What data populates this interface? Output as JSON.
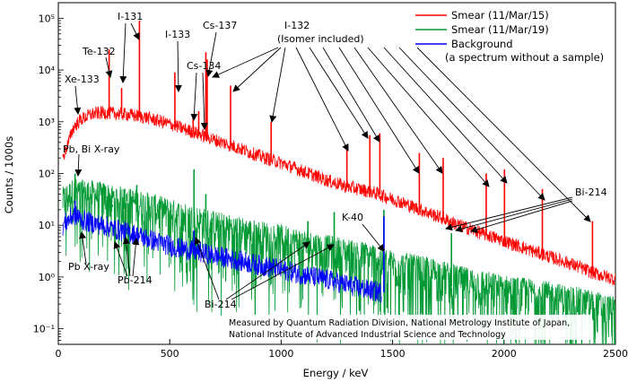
{
  "chart_data": {
    "type": "line",
    "xlabel": "Energy / keV",
    "ylabel": "Counts / 1000s",
    "xlim": [
      0,
      2500
    ],
    "ylim": [
      0.05,
      200000
    ],
    "yscale": "log",
    "x_ticks": [
      0,
      500,
      1000,
      1500,
      2000,
      2500
    ],
    "y_ticks": [
      {
        "value": 0.1,
        "label": "10⁻¹"
      },
      {
        "value": 1,
        "label": "10⁰"
      },
      {
        "value": 10,
        "label": "10¹"
      },
      {
        "value": 100,
        "label": "10²"
      },
      {
        "value": 1000,
        "label": "10³"
      },
      {
        "value": 10000,
        "label": "10⁴"
      },
      {
        "value": 100000,
        "label": "10⁵"
      }
    ],
    "legend_position": "top-right",
    "series": [
      {
        "name": "Smear (11/Mar/15)",
        "color": "#ff0000",
        "x": [
          20,
          70,
          100,
          150,
          200,
          250,
          300,
          350,
          400,
          500,
          600,
          700,
          800,
          900,
          1000,
          1100,
          1200,
          1300,
          1400,
          1500,
          1600,
          1700,
          1800,
          1900,
          2000,
          2100,
          2200,
          2300,
          2400,
          2500
        ],
        "values": [
          200,
          800,
          1100,
          1400,
          1500,
          1450,
          1400,
          1300,
          1200,
          900,
          650,
          450,
          320,
          220,
          160,
          110,
          75,
          55,
          45,
          32,
          22,
          15,
          10,
          7,
          5,
          3.5,
          2.5,
          1.8,
          1.2,
          0.9
        ],
        "peaks": [
          {
            "x": 81,
            "y": 700
          },
          {
            "x": 228,
            "y": 25000
          },
          {
            "x": 284,
            "y": 4500
          },
          {
            "x": 364,
            "y": 90000
          },
          {
            "x": 523,
            "y": 9000
          },
          {
            "x": 605,
            "y": 1300
          },
          {
            "x": 630,
            "y": 1600
          },
          {
            "x": 662,
            "y": 22000
          },
          {
            "x": 668,
            "y": 16000
          },
          {
            "x": 773,
            "y": 5000
          },
          {
            "x": 955,
            "y": 1000
          },
          {
            "x": 1295,
            "y": 350
          },
          {
            "x": 1398,
            "y": 550
          },
          {
            "x": 1443,
            "y": 600
          },
          {
            "x": 1620,
            "y": 250
          },
          {
            "x": 1727,
            "y": 200
          },
          {
            "x": 1920,
            "y": 100
          },
          {
            "x": 2002,
            "y": 120
          },
          {
            "x": 2172,
            "y": 50
          },
          {
            "x": 2397,
            "y": 12
          }
        ]
      },
      {
        "name": "Smear (11/Mar/19)",
        "color": "#009933",
        "x": [
          20,
          70,
          100,
          150,
          200,
          250,
          300,
          350,
          400,
          500,
          600,
          700,
          800,
          900,
          1000,
          1100,
          1200,
          1300,
          1400,
          1500,
          1600,
          1700,
          1800,
          1900,
          2000,
          2100,
          2200,
          2300,
          2400,
          2500
        ],
        "values": [
          20,
          30,
          28,
          27,
          25,
          22,
          20,
          18,
          16,
          12,
          9,
          7,
          5.5,
          4.5,
          3.8,
          3,
          2.4,
          2,
          1.7,
          1.2,
          1,
          0.8,
          0.6,
          0.5,
          0.4,
          0.35,
          0.3,
          0.25,
          0.2,
          0.15
        ],
        "peaks": [
          {
            "x": 75,
            "y": 100
          },
          {
            "x": 242,
            "y": 25
          },
          {
            "x": 295,
            "y": 50
          },
          {
            "x": 352,
            "y": 60
          },
          {
            "x": 609,
            "y": 120
          },
          {
            "x": 662,
            "y": 40
          },
          {
            "x": 1120,
            "y": 12
          },
          {
            "x": 1238,
            "y": 18
          },
          {
            "x": 1461,
            "y": 20
          },
          {
            "x": 1764,
            "y": 7
          }
        ]
      },
      {
        "name": "Background",
        "color": "#0000ff",
        "x": [
          20,
          70,
          100,
          150,
          200,
          250,
          300,
          350,
          400,
          500,
          600,
          700,
          800,
          900,
          1000,
          1100,
          1200,
          1300,
          1400,
          1450
        ],
        "values": [
          10,
          16,
          13,
          11,
          10,
          8.5,
          7.5,
          6.5,
          5.5,
          4,
          3.2,
          2.6,
          2.1,
          1.7,
          1.4,
          1.1,
          0.9,
          0.7,
          0.55,
          0.5
        ],
        "peaks": [
          {
            "x": 75,
            "y": 30
          },
          {
            "x": 88,
            "y": 20
          },
          {
            "x": 609,
            "y": 8
          },
          {
            "x": 1461,
            "y": 15
          }
        ]
      }
    ],
    "legend_note": "(a spectrum without a sample)",
    "annotations": [
      {
        "text": "Xe-133",
        "target_x": 81,
        "target_y": 700
      },
      {
        "text": "Te-132",
        "target_x": 228,
        "target_y": 25000
      },
      {
        "text": "I-131",
        "target_x": 284,
        "target_y": 4500
      },
      {
        "text": "I-133",
        "target_x": 523,
        "target_y": 9000
      },
      {
        "text": "Cs-137",
        "target_x": 662,
        "target_y": 22000
      },
      {
        "text": "Cs-134",
        "target_x": 605,
        "target_y": 1300
      },
      {
        "text": "I-132",
        "subtext": "(Isomer included)"
      },
      {
        "text": "Pb, Bi X-ray"
      },
      {
        "text": "Pb X-ray"
      },
      {
        "text": "Pb-214"
      },
      {
        "text": "Bi-214"
      },
      {
        "text": "K-40"
      }
    ],
    "credit_lines": [
      "Measured by Quantum Radiation Division, National Metrology Institute of Japan,",
      "National Institute of Advanced Industrial Science and Technology"
    ]
  }
}
